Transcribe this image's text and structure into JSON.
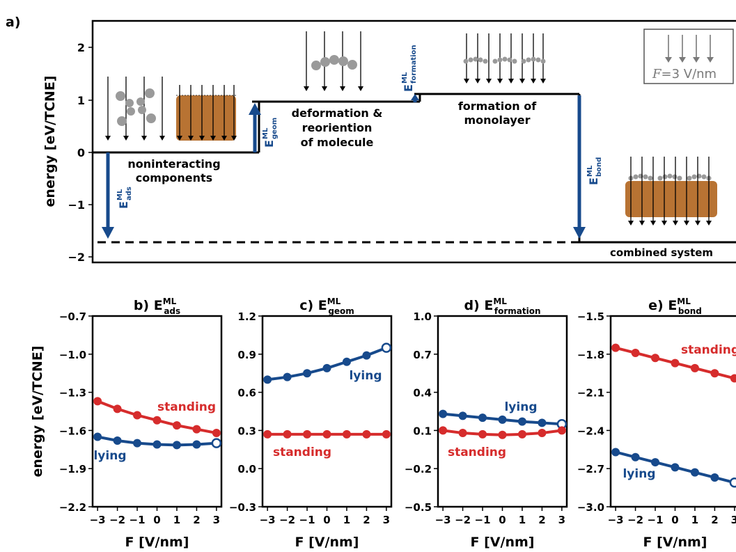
{
  "colors": {
    "standing": "#d62c2c",
    "lying": "#174a8c",
    "arrow": "#174a8c",
    "field": "#7a7a7a",
    "slab": "#b87333",
    "atom": "#9a9a9a"
  },
  "panel_a": {
    "label": "a)",
    "ylabel": "energy [eV/TCNE]",
    "yticks": [
      "2",
      "1",
      "0",
      "−1",
      "−2"
    ],
    "steps": {
      "noninteracting": [
        "noninteracting",
        "components"
      ],
      "deformation": [
        "deformation &",
        "reoriention",
        "of molecule"
      ],
      "formation": [
        "formation of",
        "monolayer"
      ],
      "combined": "combined system"
    },
    "arrows": {
      "ads": {
        "base": "E",
        "sup": "ML",
        "sub": "ads"
      },
      "geom": {
        "base": "E",
        "sup": "ML",
        "sub": "geom"
      },
      "formation": {
        "base": "E",
        "sup": "ML",
        "sub": "formation"
      },
      "bond": {
        "base": "E",
        "sup": "ML",
        "sub": "bond"
      }
    },
    "field_legend": {
      "symbol": "F",
      "text": "=3 V/nm"
    }
  },
  "chart_data": [
    {
      "type": "line",
      "panel": "b)",
      "title": {
        "base": "E",
        "sup": "ML",
        "sub": "ads"
      },
      "xlabel": "F [V/nm]",
      "ylabel": "energy [eV/TCNE]",
      "x": [
        -3,
        -2,
        -1,
        0,
        1,
        2,
        3
      ],
      "xticks": [
        "−3",
        "−2",
        "−1",
        "0",
        "1",
        "2",
        "3"
      ],
      "ylim": [
        -2.2,
        -0.7
      ],
      "yticks": [
        "−0.7",
        "−1.0",
        "−1.3",
        "−1.6",
        "−1.9",
        "−2.2"
      ],
      "series": [
        {
          "name": "standing",
          "values": [
            -1.37,
            -1.43,
            -1.48,
            -1.52,
            -1.56,
            -1.59,
            -1.62
          ]
        },
        {
          "name": "lying",
          "values": [
            -1.65,
            -1.68,
            -1.7,
            -1.71,
            -1.715,
            -1.71,
            -1.7
          ]
        }
      ]
    },
    {
      "type": "line",
      "panel": "c)",
      "title": {
        "base": "E",
        "sup": "ML",
        "sub": "geom"
      },
      "xlabel": "F [V/nm]",
      "x": [
        -3,
        -2,
        -1,
        0,
        1,
        2,
        3
      ],
      "xticks": [
        "−3",
        "−2",
        "−1",
        "0",
        "1",
        "2",
        "3"
      ],
      "ylim": [
        -0.3,
        1.2
      ],
      "yticks": [
        "1.2",
        "0.9",
        "0.6",
        "0.3",
        "0.0",
        "−0.3"
      ],
      "series": [
        {
          "name": "lying",
          "values": [
            0.7,
            0.72,
            0.75,
            0.79,
            0.84,
            0.89,
            0.95
          ]
        },
        {
          "name": "standing",
          "values": [
            0.27,
            0.27,
            0.27,
            0.27,
            0.27,
            0.27,
            0.27
          ]
        }
      ]
    },
    {
      "type": "line",
      "panel": "d)",
      "title": {
        "base": "E",
        "sup": "ML",
        "sub": "formation"
      },
      "xlabel": "F [V/nm]",
      "x": [
        -3,
        -2,
        -1,
        0,
        1,
        2,
        3
      ],
      "xticks": [
        "−3",
        "−2",
        "−1",
        "0",
        "1",
        "2",
        "3"
      ],
      "ylim": [
        -0.5,
        1.0
      ],
      "yticks": [
        "1.0",
        "0.7",
        "0.4",
        "0.1",
        "−0.2",
        "−0.5"
      ],
      "series": [
        {
          "name": "lying",
          "values": [
            0.23,
            0.215,
            0.2,
            0.185,
            0.17,
            0.16,
            0.15
          ]
        },
        {
          "name": "standing",
          "values": [
            0.1,
            0.08,
            0.07,
            0.065,
            0.07,
            0.08,
            0.1
          ]
        }
      ]
    },
    {
      "type": "line",
      "panel": "e)",
      "title": {
        "base": "E",
        "sup": "ML",
        "sub": "bond"
      },
      "xlabel": "F [V/nm]",
      "x": [
        -3,
        -2,
        -1,
        0,
        1,
        2,
        3
      ],
      "xticks": [
        "−3",
        "−2",
        "−1",
        "0",
        "1",
        "2",
        "3"
      ],
      "ylim": [
        -3.0,
        -1.5
      ],
      "yticks": [
        "−1.5",
        "−1.8",
        "−2.1",
        "−2.4",
        "−2.7",
        "−3.0"
      ],
      "series": [
        {
          "name": "standing",
          "values": [
            -1.75,
            -1.79,
            -1.83,
            -1.87,
            -1.91,
            -1.95,
            -1.99
          ]
        },
        {
          "name": "lying",
          "values": [
            -2.57,
            -2.61,
            -2.65,
            -2.69,
            -2.73,
            -2.77,
            -2.81
          ]
        }
      ]
    }
  ]
}
